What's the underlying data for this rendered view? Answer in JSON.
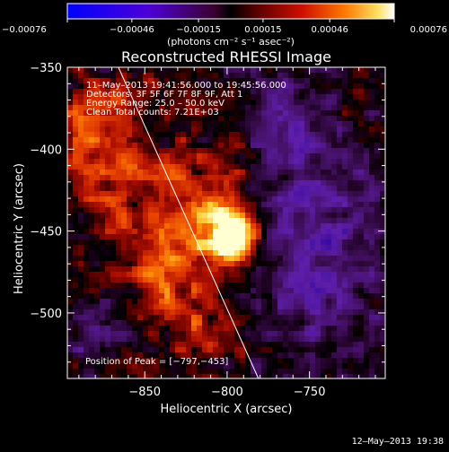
{
  "chart_data": {
    "type": "heatmap",
    "title": "Reconstructed RHESSI Image",
    "xlabel": "Heliocentric X (arcsec)",
    "ylabel": "Heliocentric Y (arcsec)",
    "xlim": [
      -897,
      -704
    ],
    "ylim": [
      -540,
      -350
    ],
    "xticks": [
      -850,
      -800,
      -750
    ],
    "xtick_labels": [
      "−850",
      "−800",
      "−750"
    ],
    "yticks": [
      -350,
      -400,
      -450,
      -500
    ],
    "ytick_labels": [
      "−350",
      "−400",
      "−450",
      "−500"
    ],
    "colorbar": {
      "range": [
        -0.00076,
        0.00076
      ],
      "tick_labels": [
        "−0.00076",
        "−0.00046",
        "−0.00015",
        "0.00015",
        "0.00046",
        "0.00076"
      ],
      "units": "(photons cm⁻² s⁻¹ asec⁻²)"
    },
    "peak": [
      -797,
      -453
    ],
    "limb_line": {
      "from": [
        -866,
        -350
      ],
      "to": [
        -781,
        -540
      ]
    },
    "grid": false
  },
  "annotations": {
    "time_range": "11–May–2013 19:41:56.000 to 19:45:56.000",
    "detectors": "Detectors: 3F 5F 6F 7F 8F 9F, Att 1",
    "energy": "Energy Range: 25.0 – 50.0 keV",
    "clean": "Clean    Total counts: 7.21E+03",
    "peak_text": "Position of Peak = [−797,−453]"
  },
  "footer_timestamp": "12–May–2013 19:38"
}
